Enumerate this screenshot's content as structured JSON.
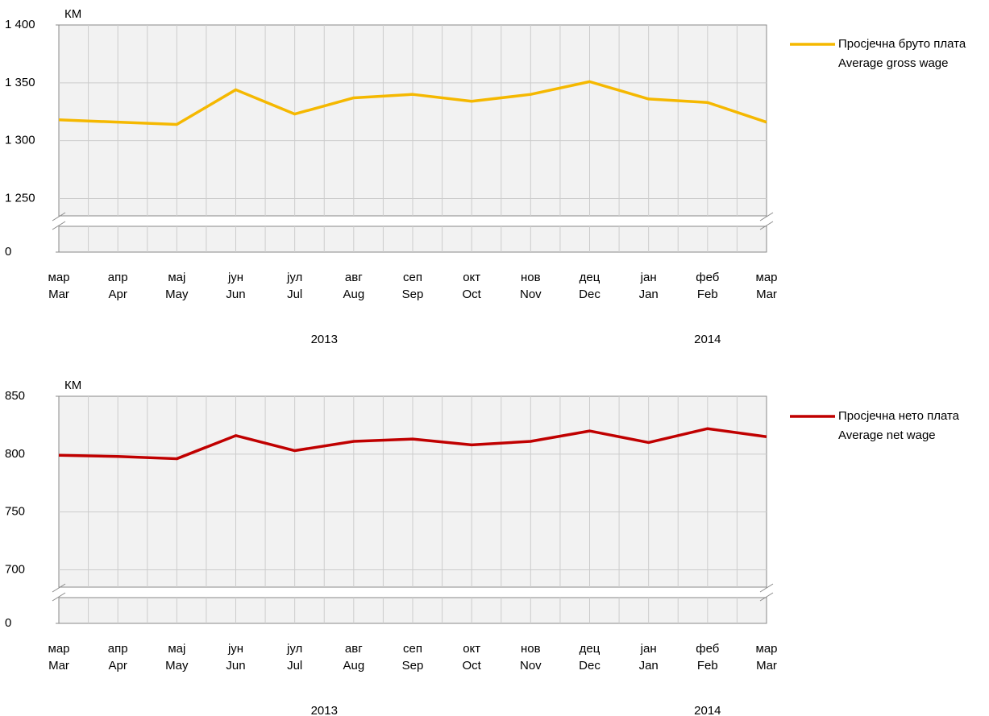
{
  "chart_data": [
    {
      "type": "line",
      "y_label": "КМ",
      "categories": [
        "мар",
        "апр",
        "мај",
        "јун",
        "јул",
        "авг",
        "сеп",
        "окт",
        "нов",
        "дец",
        "јан",
        "феб",
        "мар"
      ],
      "categories_en": [
        "Mar",
        "Apr",
        "May",
        "Jun",
        "Jul",
        "Aug",
        "Sep",
        "Oct",
        "Nov",
        "Dec",
        "Jan",
        "Feb",
        "Mar"
      ],
      "x_groups": [
        {
          "label": "2013",
          "span": 10
        },
        {
          "label": "2014",
          "span": 3
        }
      ],
      "series": [
        {
          "name": "Просјечна бруто плата",
          "name_en": "Average gross wage",
          "color": "#f5b800",
          "values": [
            1318,
            1316,
            1314,
            1344,
            1323,
            1337,
            1340,
            1334,
            1340,
            1351,
            1336,
            1333,
            1316
          ]
        }
      ],
      "ylim": [
        1235,
        1400
      ],
      "yticks": [
        {
          "value": 0,
          "label": "0"
        },
        {
          "value": 1250,
          "label": "1 250"
        },
        {
          "value": 1300,
          "label": "1 300"
        },
        {
          "value": 1350,
          "label": "1 350"
        },
        {
          "value": 1400,
          "label": "1 400"
        }
      ],
      "axis_break": true,
      "grid": true,
      "legend": "right"
    },
    {
      "type": "line",
      "y_label": "КМ",
      "categories": [
        "мар",
        "апр",
        "мај",
        "јун",
        "јул",
        "авг",
        "сеп",
        "окт",
        "нов",
        "дец",
        "јан",
        "феб",
        "мар"
      ],
      "categories_en": [
        "Mar",
        "Apr",
        "May",
        "Jun",
        "Jul",
        "Aug",
        "Sep",
        "Oct",
        "Nov",
        "Dec",
        "Jan",
        "Feb",
        "Mar"
      ],
      "x_groups": [
        {
          "label": "2013",
          "span": 10
        },
        {
          "label": "2014",
          "span": 3
        }
      ],
      "series": [
        {
          "name": "Просјечна нето плата",
          "name_en": "Average net wage",
          "color": "#c00000",
          "values": [
            799,
            798,
            796,
            816,
            803,
            811,
            813,
            808,
            811,
            820,
            810,
            822,
            815
          ]
        }
      ],
      "ylim": [
        685,
        850
      ],
      "yticks": [
        0,
        700,
        750,
        800,
        850
      ],
      "axis_break": true,
      "grid": true,
      "legend": "right"
    }
  ]
}
